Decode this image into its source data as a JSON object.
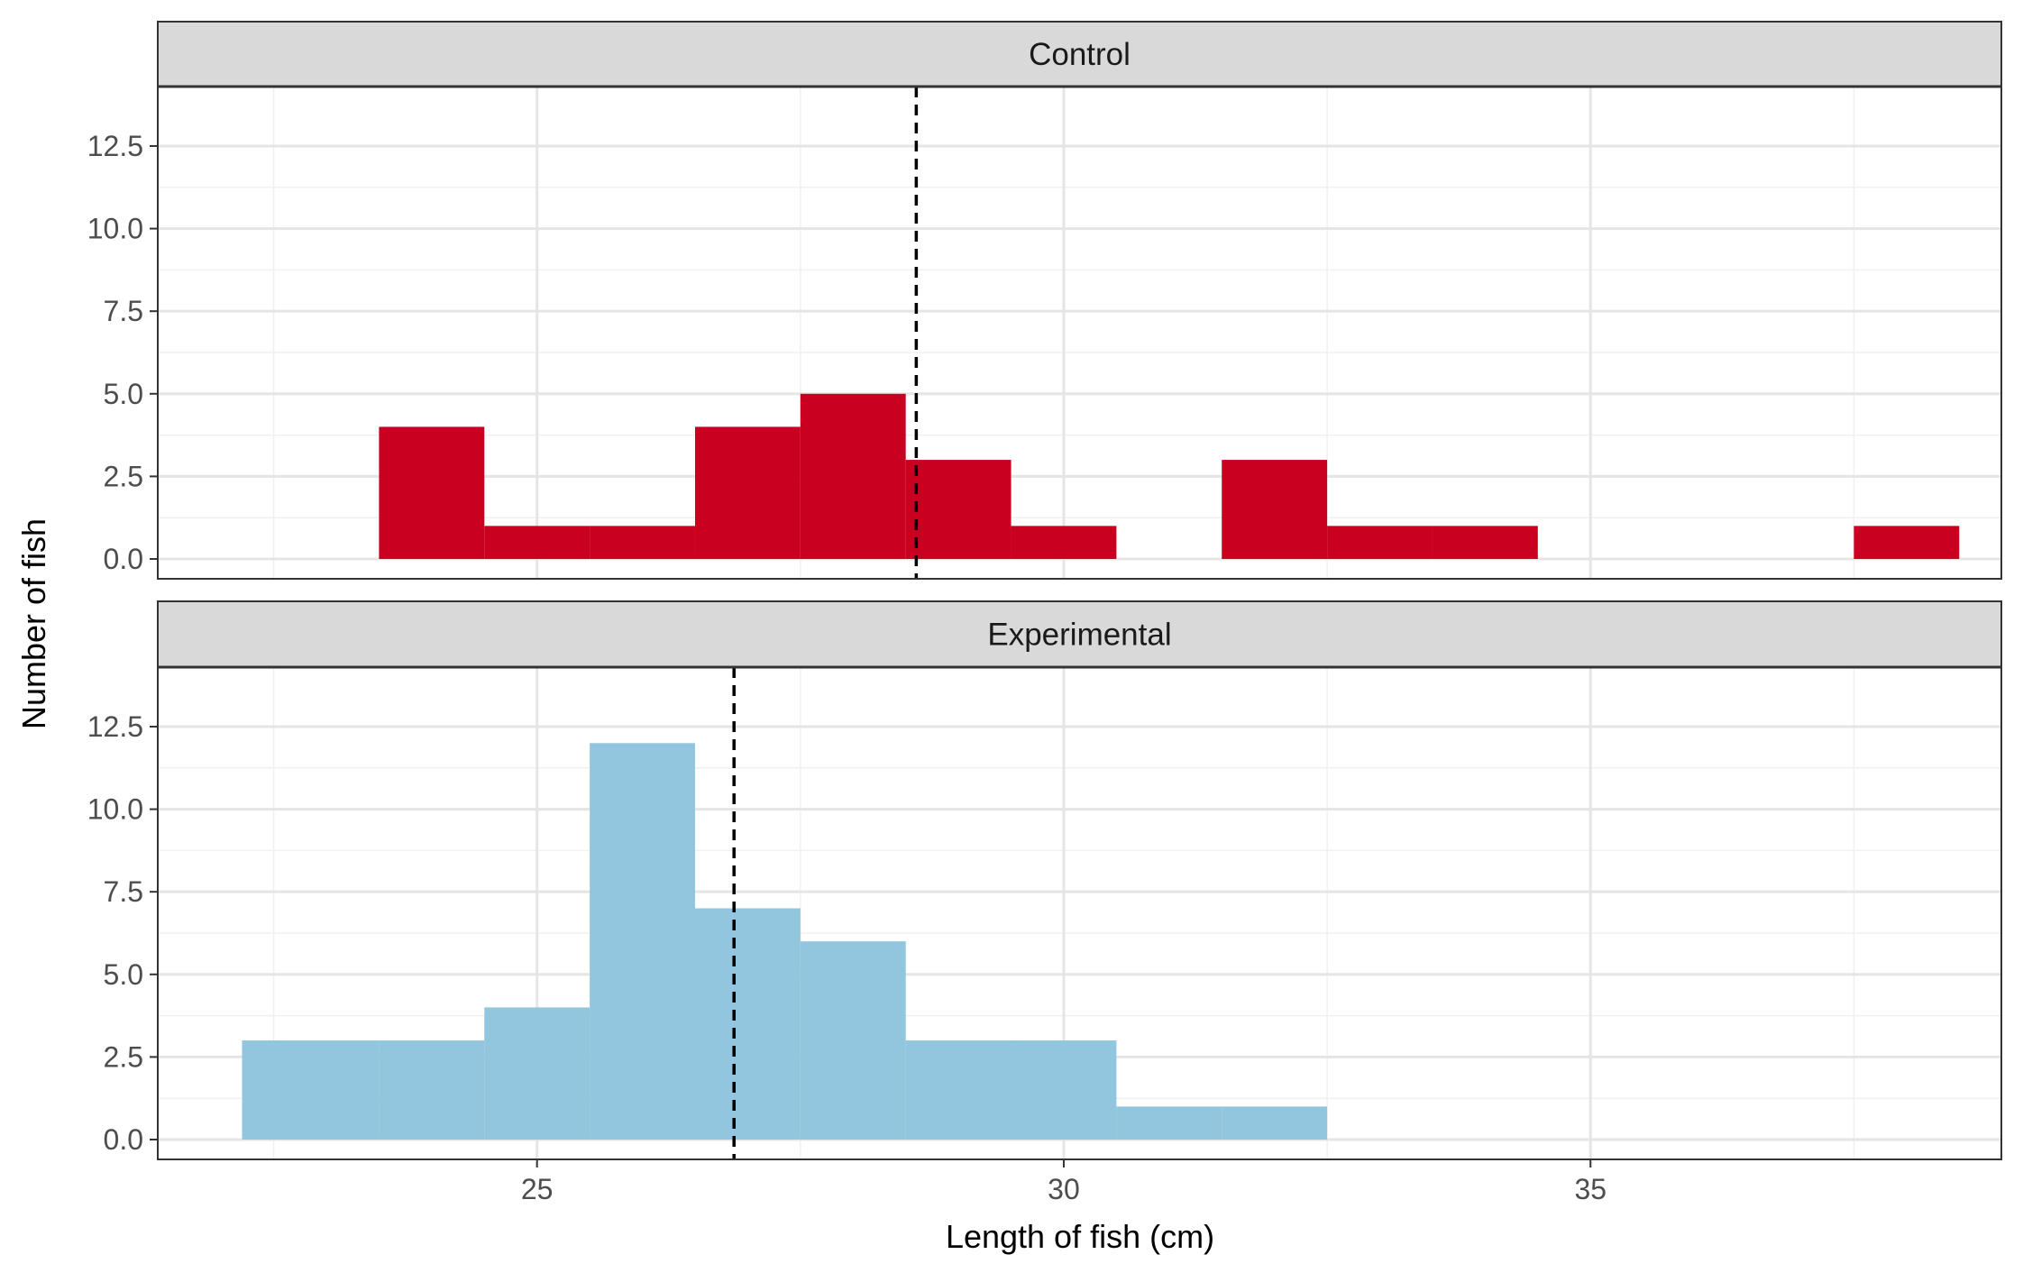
{
  "chart_data": {
    "type": "bar",
    "xlabel": "Length of fish (cm)",
    "ylabel": "Number of fish",
    "xlim": [
      21.4,
      38.9
    ],
    "ylim": [
      -0.6,
      14.3
    ],
    "x_ticks": [
      25,
      30,
      35
    ],
    "x_minor_ticks": [
      22.5,
      27.5,
      32.5,
      37.5
    ],
    "y_ticks": [
      0,
      2.5,
      5,
      7.5,
      10,
      12.5
    ],
    "y_tick_labels": [
      "0.0",
      "2.5",
      "5.0",
      "7.5",
      "10.0",
      "12.5"
    ],
    "grid": true,
    "bin_width": 1,
    "panels": [
      {
        "name": "Control",
        "fill": "#ca0020",
        "mean_line": 28.6,
        "bins": [
          {
            "x0": 23.5,
            "x1": 24.5,
            "count": 4
          },
          {
            "x0": 24.5,
            "x1": 25.5,
            "count": 1
          },
          {
            "x0": 25.5,
            "x1": 26.5,
            "count": 1
          },
          {
            "x0": 26.5,
            "x1": 27.5,
            "count": 4
          },
          {
            "x0": 27.5,
            "x1": 28.5,
            "count": 5
          },
          {
            "x0": 28.5,
            "x1": 29.5,
            "count": 3
          },
          {
            "x0": 29.5,
            "x1": 30.5,
            "count": 1
          },
          {
            "x0": 31.5,
            "x1": 32.5,
            "count": 3
          },
          {
            "x0": 32.5,
            "x1": 33.5,
            "count": 1
          },
          {
            "x0": 33.5,
            "x1": 34.5,
            "count": 1
          },
          {
            "x0": 37.5,
            "x1": 38.5,
            "count": 1
          }
        ]
      },
      {
        "name": "Experimental",
        "fill": "#92c5de",
        "mean_line": 26.87,
        "bins": [
          {
            "x0": 22.2,
            "x1": 23.5,
            "count": 3
          },
          {
            "x0": 23.5,
            "x1": 24.5,
            "count": 3
          },
          {
            "x0": 24.5,
            "x1": 25.5,
            "count": 4
          },
          {
            "x0": 25.5,
            "x1": 26.5,
            "count": 12
          },
          {
            "x0": 26.5,
            "x1": 27.5,
            "count": 7
          },
          {
            "x0": 27.5,
            "x1": 28.5,
            "count": 6
          },
          {
            "x0": 28.5,
            "x1": 29.5,
            "count": 3
          },
          {
            "x0": 29.5,
            "x1": 30.5,
            "count": 3
          },
          {
            "x0": 30.5,
            "x1": 31.5,
            "count": 1
          },
          {
            "x0": 31.5,
            "x1": 32.5,
            "count": 1
          }
        ]
      }
    ]
  }
}
